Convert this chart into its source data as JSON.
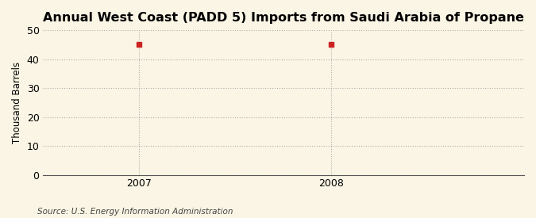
{
  "title": "Annual West Coast (PADD 5) Imports from Saudi Arabia of Propane",
  "years": [
    2007,
    2008
  ],
  "values": [
    45,
    45
  ],
  "ylabel": "Thousand Barrels",
  "ylim": [
    0,
    50
  ],
  "yticks": [
    0,
    10,
    20,
    30,
    40,
    50
  ],
  "xlim": [
    2006.5,
    2009.0
  ],
  "xticks": [
    2007,
    2008
  ],
  "marker_color": "#cc2222",
  "marker_size": 4,
  "background_color": "#faf5e4",
  "grid_color": "#b0b0b0",
  "title_fontsize": 11.5,
  "label_fontsize": 8.5,
  "tick_fontsize": 9,
  "source_text": "Source: U.S. Energy Information Administration",
  "source_fontsize": 7.5
}
